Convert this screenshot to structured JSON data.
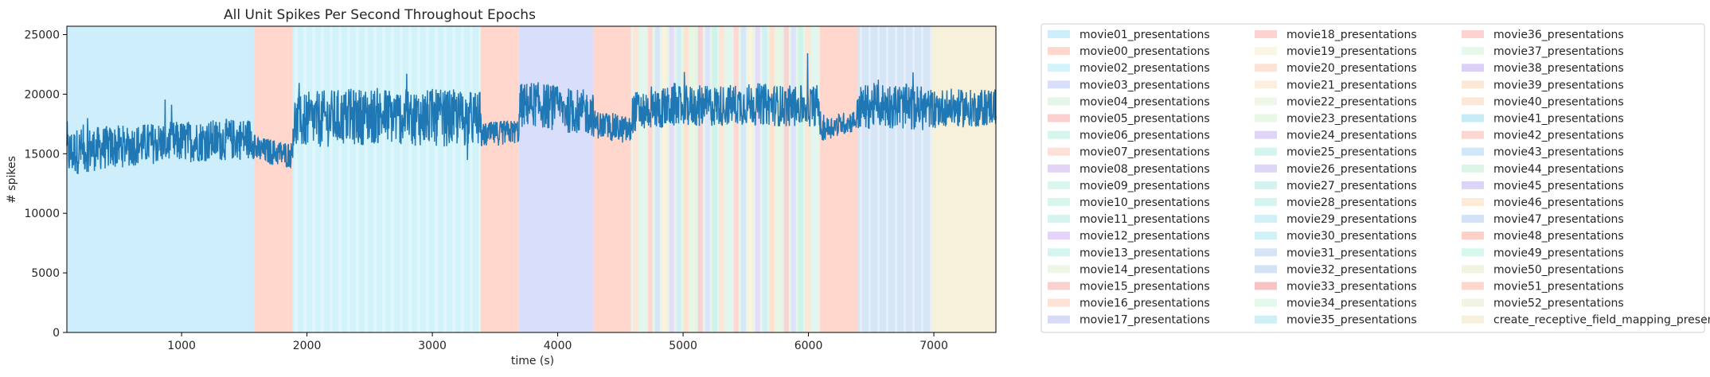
{
  "chart_data": {
    "type": "line",
    "title": "All Unit Spikes Per Second Throughout Epochs",
    "xlabel": "time (s)",
    "ylabel": "# spikes",
    "xlim": [
      85,
      7495
    ],
    "ylim": [
      0,
      25700
    ],
    "xticks": [
      1000,
      2000,
      3000,
      4000,
      5000,
      6000,
      7000
    ],
    "yticks": [
      0,
      5000,
      10000,
      15000,
      20000,
      25000
    ],
    "xtick_labels": [
      "1000",
      "2000",
      "3000",
      "4000",
      "5000",
      "6000",
      "7000"
    ],
    "ytick_labels": [
      "0",
      "5000",
      "10000",
      "15000",
      "20000",
      "25000"
    ],
    "grid": false,
    "legend_placement": "outside-right",
    "line_color": "#1f77b4",
    "series": [
      {
        "x": [
          85,
          200,
          400,
          600,
          800,
          1000,
          1200,
          1400,
          1580,
          1590,
          1700,
          1800,
          1880,
          1890,
          2000,
          2200,
          2400,
          2600,
          2800,
          3000,
          3200,
          3380,
          3390,
          3500,
          3600,
          3690,
          3700,
          3800,
          3900,
          4000,
          4100,
          4200,
          4280,
          4290,
          4400,
          4500,
          4580,
          4600,
          4800,
          5000,
          5200,
          5400,
          5600,
          5800,
          6000,
          6080,
          6100,
          6200,
          6300,
          6380,
          6400,
          6500,
          6600,
          6700,
          6800,
          6900,
          7000,
          7100,
          7200,
          7300,
          7400,
          7495
        ],
        "y": [
          15000,
          15300,
          15500,
          15700,
          15900,
          16000,
          16100,
          16200,
          16300,
          15300,
          15200,
          15000,
          14900,
          17500,
          17800,
          18000,
          18100,
          18200,
          18100,
          18000,
          18000,
          17900,
          16500,
          16700,
          16800,
          16900,
          19000,
          19200,
          19000,
          18800,
          18600,
          18500,
          18400,
          17500,
          17300,
          17100,
          16900,
          18500,
          18800,
          19000,
          19000,
          19100,
          19200,
          19000,
          19000,
          19100,
          17000,
          17300,
          17600,
          17800,
          18800,
          19000,
          19100,
          19000,
          18900,
          18800,
          18800,
          18900,
          18800,
          18800,
          18900,
          19000
        ],
        "noise_amplitude": [
          2600,
          2400,
          2300,
          2200,
          2200,
          2200,
          2200,
          2200,
          2200,
          1400,
          1400,
          1400,
          1400,
          3000,
          3000,
          3000,
          3000,
          3000,
          3000,
          3000,
          3000,
          3000,
          1300,
          1300,
          1300,
          1300,
          2400,
          2400,
          2400,
          2400,
          2400,
          2400,
          2400,
          1500,
          1500,
          1500,
          1500,
          2200,
          2200,
          2200,
          2200,
          2200,
          2200,
          2200,
          2200,
          2200,
          1200,
          1200,
          1200,
          1200,
          2400,
          2400,
          2400,
          2400,
          2400,
          2400,
          2000,
          2000,
          2000,
          2000,
          2000,
          2000
        ]
      }
    ],
    "epochs": [
      {
        "label": "movie01_presentations",
        "start": 85,
        "end": 1580,
        "color": "#cdeefa"
      },
      {
        "label": "movie00_presentations",
        "start": 1580,
        "end": 1885,
        "color": "#ffd7cd"
      },
      {
        "label": "movie02_presentations",
        "start": 1885,
        "end": 3385,
        "color": "#d2f3fa",
        "striped": true
      },
      {
        "label": "movie00_presentations",
        "start": 3385,
        "end": 3690,
        "color": "#ffd7cd"
      },
      {
        "label": "movie03_presentations",
        "start": 3690,
        "end": 4285,
        "color": "#d9defa"
      },
      {
        "label": "movie00_presentations",
        "start": 4285,
        "end": 4585,
        "color": "#ffd7cd"
      },
      {
        "label": "movie04_presentations",
        "start": 4585,
        "end": 6090,
        "color": "#e5f5ea",
        "striped": true,
        "mixed": true
      },
      {
        "label": "movie00_presentations",
        "start": 6090,
        "end": 6390,
        "color": "#ffd7cd"
      },
      {
        "label": "movie31_presentations",
        "start": 6390,
        "end": 6985,
        "color": "#d6e6f7",
        "striped": true
      },
      {
        "label": "create_receptive_field_mapping_presentations",
        "start": 6985,
        "end": 7495,
        "color": "#f7f1dc"
      }
    ],
    "mixed_palette": [
      "#fde6d8",
      "#e4f6f0",
      "#ffd8d4",
      "#d6e6f7",
      "#fdf3dc",
      "#e6dcfa",
      "#d0f0f6",
      "#ffe1cf",
      "#e6f7e2",
      "#fad2d2",
      "#dbe4fb",
      "#ccf3ec"
    ],
    "legend": [
      {
        "label": "movie01_presentations",
        "color": "#cdeefa"
      },
      {
        "label": "movie00_presentations",
        "color": "#ffd7cd"
      },
      {
        "label": "movie02_presentations",
        "color": "#d2f3fa"
      },
      {
        "label": "movie03_presentations",
        "color": "#d9defa"
      },
      {
        "label": "movie04_presentations",
        "color": "#e5f5ea"
      },
      {
        "label": "movie05_presentations",
        "color": "#fbd0d0"
      },
      {
        "label": "movie06_presentations",
        "color": "#d6f5ed"
      },
      {
        "label": "movie07_presentations",
        "color": "#fde0d8"
      },
      {
        "label": "movie08_presentations",
        "color": "#e3d4f7"
      },
      {
        "label": "movie09_presentations",
        "color": "#daf6ee"
      },
      {
        "label": "movie10_presentations",
        "color": "#d6f6ee"
      },
      {
        "label": "movie11_presentations",
        "color": "#d4f4ed"
      },
      {
        "label": "movie12_presentations",
        "color": "#e6d3fa"
      },
      {
        "label": "movie13_presentations",
        "color": "#d4f6ef"
      },
      {
        "label": "movie14_presentations",
        "color": "#eef7e5"
      },
      {
        "label": "movie15_presentations",
        "color": "#fbd0d0"
      },
      {
        "label": "movie16_presentations",
        "color": "#fde3d6"
      },
      {
        "label": "movie17_presentations",
        "color": "#d8dbf7"
      },
      {
        "label": "movie18_presentations",
        "color": "#fcd3d0"
      },
      {
        "label": "movie19_presentations",
        "color": "#fbf5e4"
      },
      {
        "label": "movie20_presentations",
        "color": "#fde3d6"
      },
      {
        "label": "movie21_presentations",
        "color": "#fbf0e0"
      },
      {
        "label": "movie22_presentations",
        "color": "#eef7e8"
      },
      {
        "label": "movie23_presentations",
        "color": "#e9f7e6"
      },
      {
        "label": "movie24_presentations",
        "color": "#e0d4f8"
      },
      {
        "label": "movie25_presentations",
        "color": "#d4f4ee"
      },
      {
        "label": "movie26_presentations",
        "color": "#ddd6f6"
      },
      {
        "label": "movie27_presentations",
        "color": "#d4f3ee"
      },
      {
        "label": "movie28_presentations",
        "color": "#d6f5f1"
      },
      {
        "label": "movie29_presentations",
        "color": "#cdf1f6"
      },
      {
        "label": "movie30_presentations",
        "color": "#d1f3f5"
      },
      {
        "label": "movie31_presentations",
        "color": "#d6e4f7"
      },
      {
        "label": "movie32_presentations",
        "color": "#d4e2f6"
      },
      {
        "label": "movie33_presentations",
        "color": "#f7c3c3"
      },
      {
        "label": "movie34_presentations",
        "color": "#e2f8ea"
      },
      {
        "label": "movie35_presentations",
        "color": "#cdf0f6"
      },
      {
        "label": "movie36_presentations",
        "color": "#fcd3d0"
      },
      {
        "label": "movie37_presentations",
        "color": "#e6f8e9"
      },
      {
        "label": "movie38_presentations",
        "color": "#dcd0f8"
      },
      {
        "label": "movie39_presentations",
        "color": "#fbe8d6"
      },
      {
        "label": "movie40_presentations",
        "color": "#fde8d8"
      },
      {
        "label": "movie41_presentations",
        "color": "#c8ecf6"
      },
      {
        "label": "movie42_presentations",
        "color": "#fdd6d0"
      },
      {
        "label": "movie43_presentations",
        "color": "#d0e6f9"
      },
      {
        "label": "movie44_presentations",
        "color": "#ddf5e6"
      },
      {
        "label": "movie45_presentations",
        "color": "#dcd4f6"
      },
      {
        "label": "movie46_presentations",
        "color": "#fdebd8"
      },
      {
        "label": "movie47_presentations",
        "color": "#d4e2f7"
      },
      {
        "label": "movie48_presentations",
        "color": "#fdd0c8"
      },
      {
        "label": "movie49_presentations",
        "color": "#d6f8ef"
      },
      {
        "label": "movie50_presentations",
        "color": "#f1f2df"
      },
      {
        "label": "movie51_presentations",
        "color": "#fdd6cc"
      },
      {
        "label": "movie52_presentations",
        "color": "#f1f4e2"
      },
      {
        "label": "create_receptive_field_mapping_presentations",
        "color": "#f7f1dc"
      }
    ]
  }
}
